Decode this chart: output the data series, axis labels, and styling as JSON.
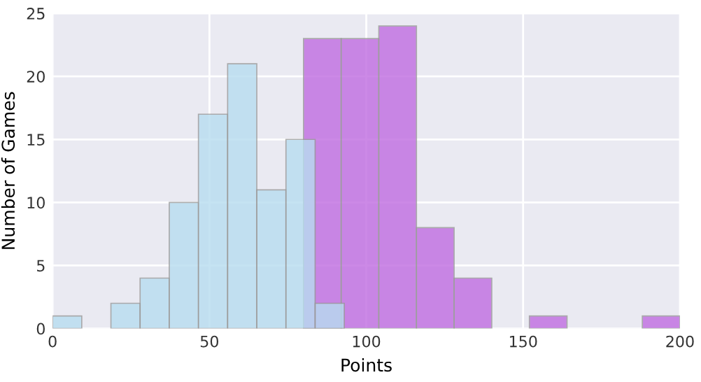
{
  "chart_data": {
    "type": "bar",
    "xlabel": "Points",
    "ylabel": "Number of Games",
    "series": [
      {
        "color": "#b7dcef",
        "x": [
          4.65,
          13.95,
          23.25,
          32.55,
          41.85,
          51.15,
          60.45,
          69.75,
          79.05,
          88.35
        ],
        "values": [
          1,
          0,
          2,
          4,
          10,
          17,
          21,
          11,
          15,
          2
        ]
      },
      {
        "color": "#c06ce0",
        "x": [
          86,
          98,
          110,
          122,
          134,
          146,
          158,
          170,
          182,
          194
        ],
        "values": [
          23,
          23,
          24,
          8,
          4,
          0,
          1,
          0,
          0,
          1
        ]
      }
    ],
    "xlim": [
      0,
      200
    ],
    "ylim": [
      0,
      25
    ],
    "xticks": [
      0,
      50,
      100,
      150,
      200
    ],
    "yticks": [
      0,
      5,
      10,
      15,
      20,
      25
    ],
    "grid": true
  }
}
